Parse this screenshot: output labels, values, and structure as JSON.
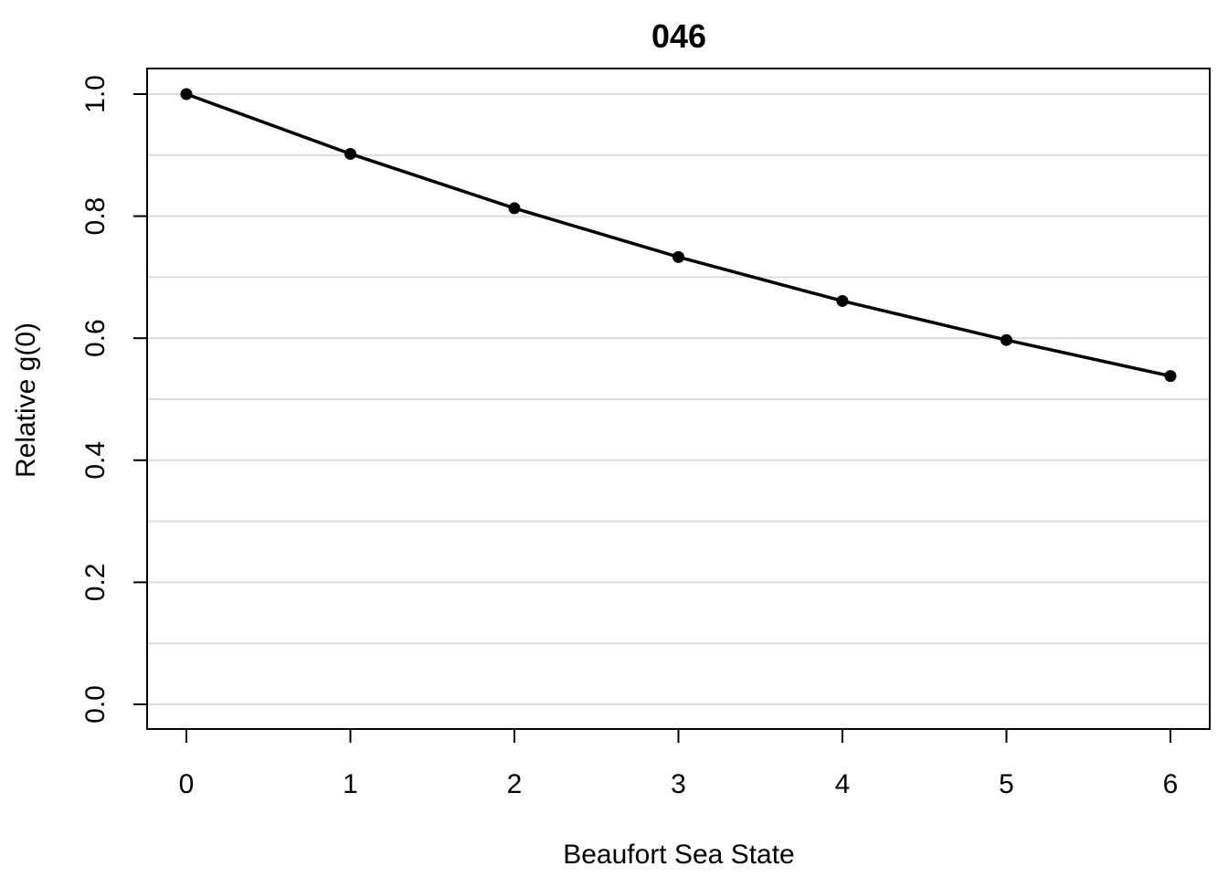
{
  "chart_data": {
    "type": "line",
    "title": "046",
    "xlabel": "Beaufort Sea State",
    "ylabel": "Relative g(0)",
    "x": [
      0,
      1,
      2,
      3,
      4,
      5,
      6
    ],
    "series": [
      {
        "values": [
          1.0,
          0.902,
          0.813,
          0.733,
          0.661,
          0.597,
          0.538
        ]
      }
    ],
    "xlim": [
      0,
      6
    ],
    "ylim": [
      0,
      1.0
    ],
    "x_ticks": [
      "0",
      "1",
      "2",
      "3",
      "4",
      "5",
      "6"
    ],
    "y_ticks": [
      "0.0",
      "0.2",
      "0.4",
      "0.6",
      "0.8",
      "1.0"
    ],
    "y_tick_values": [
      0,
      0.2,
      0.4,
      0.6,
      0.8,
      1.0
    ],
    "grid": "horizontal",
    "grid_y_values": [
      0,
      0.1,
      0.2,
      0.3,
      0.4,
      0.5,
      0.6,
      0.7,
      0.8,
      0.9,
      1.0
    ],
    "colors": {
      "line": "#000000",
      "grid": "#dcdcdc",
      "frame": "#000000"
    }
  }
}
